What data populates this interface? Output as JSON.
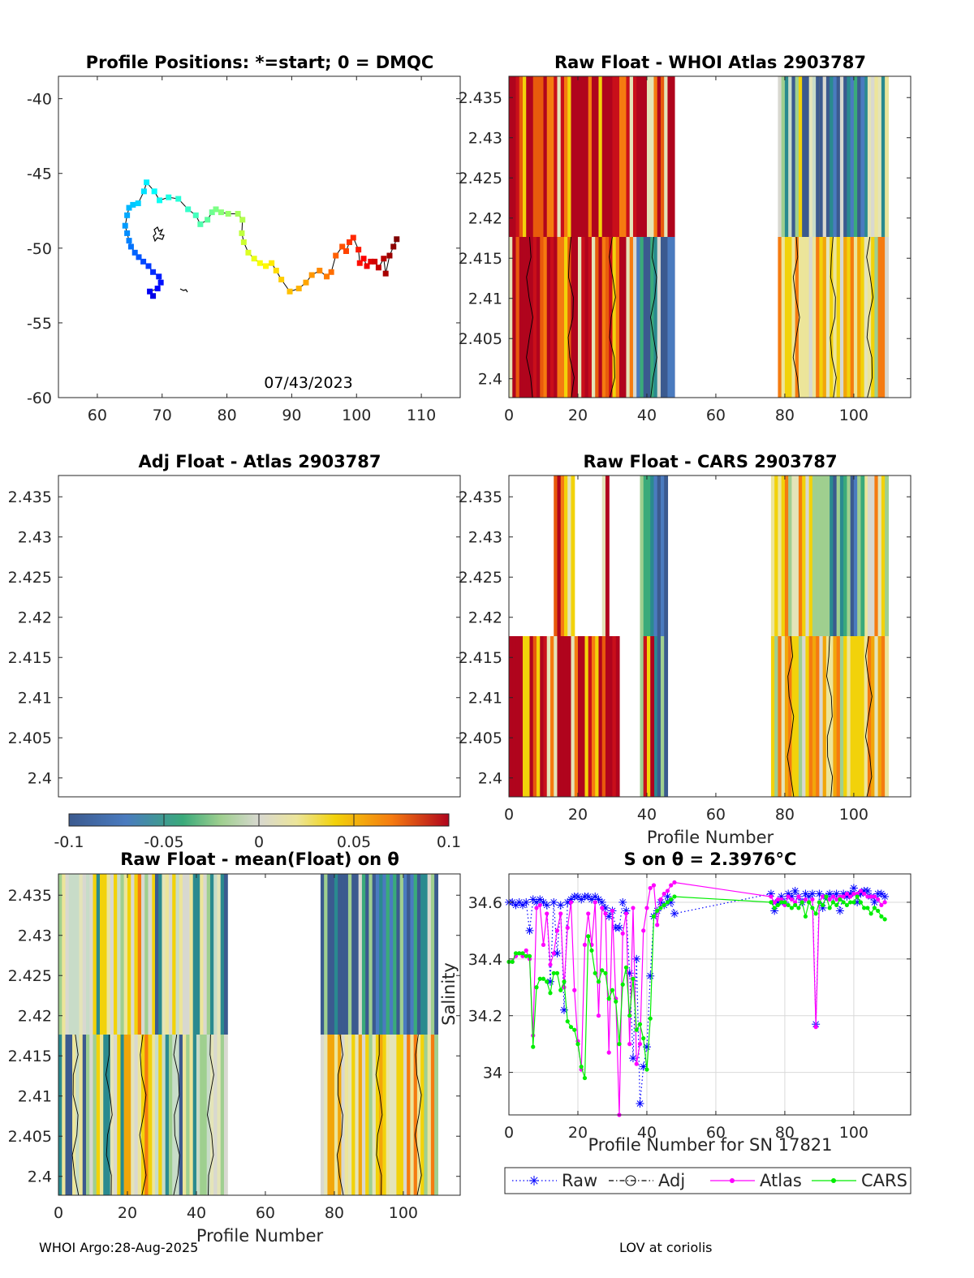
{
  "footer": {
    "left": "WHOI Argo:28-Aug-2025",
    "right": "LOV at coriolis"
  },
  "colors": {
    "raw": "#0000ff",
    "adj": "#000000",
    "atlas": "#ff00ff",
    "cars": "#00ee00",
    "grid": "#d9d9d9"
  },
  "colorbar": {
    "min": -0.1,
    "max": 0.1,
    "ticks": [
      "-0.1",
      "-0.05",
      "0",
      "0.05",
      "0.1"
    ]
  },
  "chart_data": [
    {
      "id": "positions",
      "type": "scatter",
      "title": "Profile Positions: *=start; 0 = DMQC",
      "annotation": "07/43/2023",
      "xlim": [
        54,
        116
      ],
      "ylim": [
        -60,
        -38.5
      ],
      "xticks": [
        "60",
        "70",
        "80",
        "90",
        "100",
        "110"
      ],
      "yticks": [
        "-40",
        "-45",
        "-50",
        "-55",
        "-60"
      ],
      "track": [
        [
          68.6,
          -53.2
        ],
        [
          68.1,
          -52.9
        ],
        [
          69.3,
          -52.7
        ],
        [
          69.8,
          -52.3
        ],
        [
          69.5,
          -51.9
        ],
        [
          68.6,
          -51.6
        ],
        [
          67.9,
          -51.2
        ],
        [
          67.1,
          -50.9
        ],
        [
          66.4,
          -50.6
        ],
        [
          65.8,
          -50.3
        ],
        [
          65.2,
          -49.9
        ],
        [
          64.9,
          -49.5
        ],
        [
          64.6,
          -49.0
        ],
        [
          64.3,
          -48.5
        ],
        [
          64.6,
          -47.8
        ],
        [
          64.9,
          -47.3
        ],
        [
          65.5,
          -47.1
        ],
        [
          66.3,
          -47.0
        ],
        [
          67.2,
          -46.2
        ],
        [
          67.6,
          -45.6
        ],
        [
          68.8,
          -46.2
        ],
        [
          69.6,
          -46.8
        ],
        [
          71.0,
          -46.6
        ],
        [
          72.5,
          -46.7
        ],
        [
          74.0,
          -47.4
        ],
        [
          75.2,
          -47.8
        ],
        [
          75.9,
          -48.4
        ],
        [
          77.0,
          -48.1
        ],
        [
          77.7,
          -47.6
        ],
        [
          78.3,
          -47.4
        ],
        [
          79.1,
          -47.6
        ],
        [
          80.2,
          -47.7
        ],
        [
          81.7,
          -47.7
        ],
        [
          82.4,
          -48.1
        ],
        [
          82.3,
          -49.0
        ],
        [
          82.6,
          -49.6
        ],
        [
          83.3,
          -50.3
        ],
        [
          84.2,
          -50.7
        ],
        [
          85.1,
          -51.0
        ],
        [
          86.0,
          -51.2
        ],
        [
          86.9,
          -51.0
        ],
        [
          87.6,
          -51.5
        ],
        [
          88.4,
          -52.1
        ],
        [
          89.7,
          -52.9
        ],
        [
          91.1,
          -52.7
        ],
        [
          92.2,
          -52.3
        ],
        [
          93.1,
          -51.8
        ],
        [
          94.3,
          -51.5
        ],
        [
          95.4,
          -51.9
        ],
        [
          96.1,
          -51.6
        ],
        [
          96.8,
          -50.5
        ],
        [
          97.8,
          -49.9
        ],
        [
          98.4,
          -50.2
        ],
        [
          98.9,
          -49.6
        ],
        [
          99.5,
          -49.3
        ],
        [
          100.3,
          -50.1
        ],
        [
          100.5,
          -51.0
        ],
        [
          101.1,
          -50.7
        ],
        [
          101.6,
          -51.2
        ],
        [
          102.2,
          -50.9
        ],
        [
          102.8,
          -50.9
        ],
        [
          103.4,
          -51.3
        ],
        [
          104.2,
          -50.7
        ],
        [
          104.5,
          -51.7
        ],
        [
          105.1,
          -50.5
        ],
        [
          105.7,
          -49.9
        ],
        [
          106.2,
          -49.4
        ]
      ]
    },
    {
      "id": "whoi",
      "type": "heatmap",
      "title": "Raw Float - WHOI Atlas  2903787",
      "xlim": [
        0,
        116.5
      ],
      "ylim": [
        2.39765,
        2.43765
      ],
      "xticks": [
        "0",
        "20",
        "40",
        "60",
        "80",
        "100"
      ],
      "yticks": [
        "2.435",
        "2.43",
        "2.425",
        "2.42",
        "2.415",
        "2.41",
        "2.405",
        "2.4"
      ]
    },
    {
      "id": "adj",
      "type": "heatmap",
      "title": "Adj Float - Atlas  2903787",
      "xlim": [
        0,
        116.5
      ],
      "ylim": [
        2.39765,
        2.43765
      ],
      "yticks": [
        "2.435",
        "2.43",
        "2.425",
        "2.42",
        "2.415",
        "2.41",
        "2.405",
        "2.4"
      ]
    },
    {
      "id": "cars",
      "type": "heatmap",
      "title": "Raw Float - CARS  2903787",
      "xlabel": "Profile Number",
      "xlim": [
        0,
        116.5
      ],
      "ylim": [
        2.39765,
        2.43765
      ],
      "xticks": [
        "0",
        "20",
        "40",
        "60",
        "80",
        "100"
      ],
      "yticks": [
        "2.435",
        "2.43",
        "2.425",
        "2.42",
        "2.415",
        "2.41",
        "2.405",
        "2.4"
      ]
    },
    {
      "id": "mean",
      "type": "heatmap",
      "title": "Raw Float - mean(Float) on θ",
      "xlabel": "Profile Number",
      "xlim": [
        0,
        116.5
      ],
      "ylim": [
        2.39765,
        2.43765
      ],
      "xticks": [
        "0",
        "20",
        "40",
        "60",
        "80",
        "100"
      ],
      "yticks": [
        "2.435",
        "2.43",
        "2.425",
        "2.42",
        "2.415",
        "2.41",
        "2.405",
        "2.4"
      ]
    },
    {
      "id": "salinity",
      "type": "line",
      "title": "S on θ = 2.3976°C",
      "xlabel": "Profile Number for SN 17821",
      "ylabel": "Salinity",
      "xlim": [
        0,
        116.5
      ],
      "ylim": [
        33.85,
        34.7
      ],
      "xticks": [
        "0",
        "20",
        "40",
        "60",
        "80",
        "100"
      ],
      "yticks": [
        "34",
        "34.2",
        "34.4",
        "34.6"
      ],
      "legend": [
        "Raw",
        "Adj",
        "Atlas",
        "CARS"
      ],
      "series": [
        {
          "name": "Raw",
          "x": [
            0,
            1,
            2,
            3,
            4,
            5,
            6,
            7,
            8,
            9,
            10,
            11,
            12,
            13,
            14,
            15,
            16,
            17,
            18,
            19,
            20,
            21,
            22,
            23,
            24,
            25,
            26,
            27,
            28,
            29,
            30,
            31,
            32,
            33,
            34,
            35,
            36,
            37,
            38,
            39,
            40,
            41,
            42,
            43,
            44,
            45,
            46,
            47,
            48,
            76,
            77,
            78,
            79,
            80,
            81,
            82,
            83,
            84,
            85,
            86,
            87,
            88,
            89,
            90,
            91,
            92,
            93,
            94,
            95,
            96,
            97,
            98,
            99,
            100,
            101,
            102,
            103,
            104,
            105,
            106,
            107,
            108,
            109
          ],
          "y": [
            34.6,
            34.6,
            34.59,
            34.6,
            34.59,
            34.6,
            34.5,
            34.61,
            34.6,
            34.61,
            34.6,
            34.59,
            34.32,
            34.6,
            34.42,
            34.59,
            34.22,
            34.6,
            34.61,
            34.62,
            34.62,
            34.61,
            34.62,
            34.62,
            34.61,
            34.62,
            34.61,
            34.6,
            34.58,
            34.55,
            34.57,
            34.51,
            34.51,
            34.6,
            34.57,
            34.35,
            34.05,
            34.4,
            33.89,
            34.02,
            34.09,
            34.34,
            34.55,
            34.57,
            34.6,
            34.59,
            34.62,
            34.6,
            34.56,
            34.63,
            34.57,
            34.6,
            34.62,
            34.6,
            34.63,
            34.62,
            34.64,
            34.62,
            34.6,
            34.63,
            34.62,
            34.63,
            34.17,
            34.63,
            34.58,
            34.62,
            34.63,
            34.62,
            34.63,
            34.57,
            34.63,
            34.62,
            34.63,
            34.65,
            34.6,
            34.63,
            34.64,
            34.64,
            34.62,
            34.6,
            34.63,
            34.63,
            34.62
          ]
        },
        {
          "name": "Atlas",
          "x": [
            0,
            1,
            2,
            3,
            4,
            5,
            6,
            7,
            8,
            9,
            10,
            11,
            12,
            13,
            14,
            15,
            16,
            17,
            18,
            19,
            20,
            21,
            22,
            23,
            24,
            25,
            26,
            27,
            28,
            29,
            30,
            31,
            32,
            33,
            34,
            35,
            36,
            37,
            38,
            39,
            40,
            41,
            42,
            43,
            44,
            45,
            46,
            47,
            48,
            76,
            77,
            78,
            79,
            80,
            81,
            82,
            83,
            84,
            85,
            86,
            87,
            88,
            89,
            90,
            91,
            92,
            93,
            94,
            95,
            96,
            97,
            98,
            99,
            100,
            101,
            102,
            103,
            104,
            105,
            106,
            107,
            108,
            109
          ],
          "y": [
            34.39,
            34.39,
            34.41,
            34.42,
            34.41,
            34.43,
            34.4,
            34.13,
            34.58,
            34.59,
            34.45,
            34.56,
            34.38,
            34.42,
            34.5,
            34.56,
            34.3,
            34.51,
            34.6,
            34.29,
            34.11,
            34.01,
            34.45,
            34.56,
            34.45,
            34.6,
            34.2,
            34.58,
            34.56,
            34.07,
            34.57,
            34.26,
            33.85,
            34.49,
            34.56,
            34.1,
            34.58,
            34.03,
            34.1,
            34.5,
            34.58,
            34.65,
            34.66,
            34.52,
            34.61,
            34.63,
            34.64,
            34.66,
            34.67,
            34.62,
            34.6,
            34.61,
            34.61,
            34.59,
            34.62,
            34.61,
            34.6,
            34.62,
            34.6,
            34.61,
            34.6,
            34.61,
            34.16,
            34.6,
            34.62,
            34.62,
            34.61,
            34.62,
            34.61,
            34.62,
            34.62,
            34.63,
            34.62,
            34.63,
            34.63,
            34.64,
            34.63,
            34.62,
            34.62,
            34.62,
            34.61,
            34.59,
            34.6
          ]
        },
        {
          "name": "CARS",
          "x": [
            0,
            1,
            2,
            3,
            4,
            5,
            6,
            7,
            8,
            9,
            10,
            11,
            12,
            13,
            14,
            15,
            16,
            17,
            18,
            19,
            20,
            21,
            22,
            23,
            24,
            25,
            26,
            27,
            28,
            29,
            30,
            31,
            32,
            33,
            34,
            35,
            36,
            37,
            38,
            39,
            40,
            41,
            42,
            43,
            44,
            45,
            46,
            47,
            48,
            76,
            77,
            78,
            79,
            80,
            81,
            82,
            83,
            84,
            85,
            86,
            87,
            88,
            89,
            90,
            91,
            92,
            93,
            94,
            95,
            96,
            97,
            98,
            99,
            100,
            101,
            102,
            103,
            104,
            105,
            106,
            107,
            108,
            109
          ],
          "y": [
            34.39,
            34.39,
            34.42,
            34.42,
            34.42,
            34.41,
            34.41,
            34.09,
            34.3,
            34.33,
            34.33,
            34.32,
            34.28,
            34.35,
            34.35,
            34.29,
            34.32,
            34.18,
            34.16,
            34.15,
            34.1,
            34.02,
            33.98,
            34.48,
            34.43,
            34.35,
            34.32,
            34.36,
            34.35,
            34.26,
            34.29,
            34.25,
            34.1,
            34.31,
            34.37,
            34.2,
            34.33,
            34.15,
            34.17,
            34.12,
            34.01,
            34.19,
            34.55,
            34.57,
            34.58,
            34.59,
            34.6,
            34.61,
            34.62,
            34.6,
            34.58,
            34.59,
            34.6,
            34.6,
            34.59,
            34.58,
            34.59,
            34.58,
            34.6,
            34.55,
            34.6,
            34.58,
            34.56,
            34.6,
            34.59,
            34.62,
            34.58,
            34.6,
            34.59,
            34.61,
            34.6,
            34.59,
            34.6,
            34.6,
            34.62,
            34.6,
            34.58,
            34.58,
            34.56,
            34.58,
            34.57,
            34.55,
            34.54
          ]
        }
      ]
    }
  ]
}
